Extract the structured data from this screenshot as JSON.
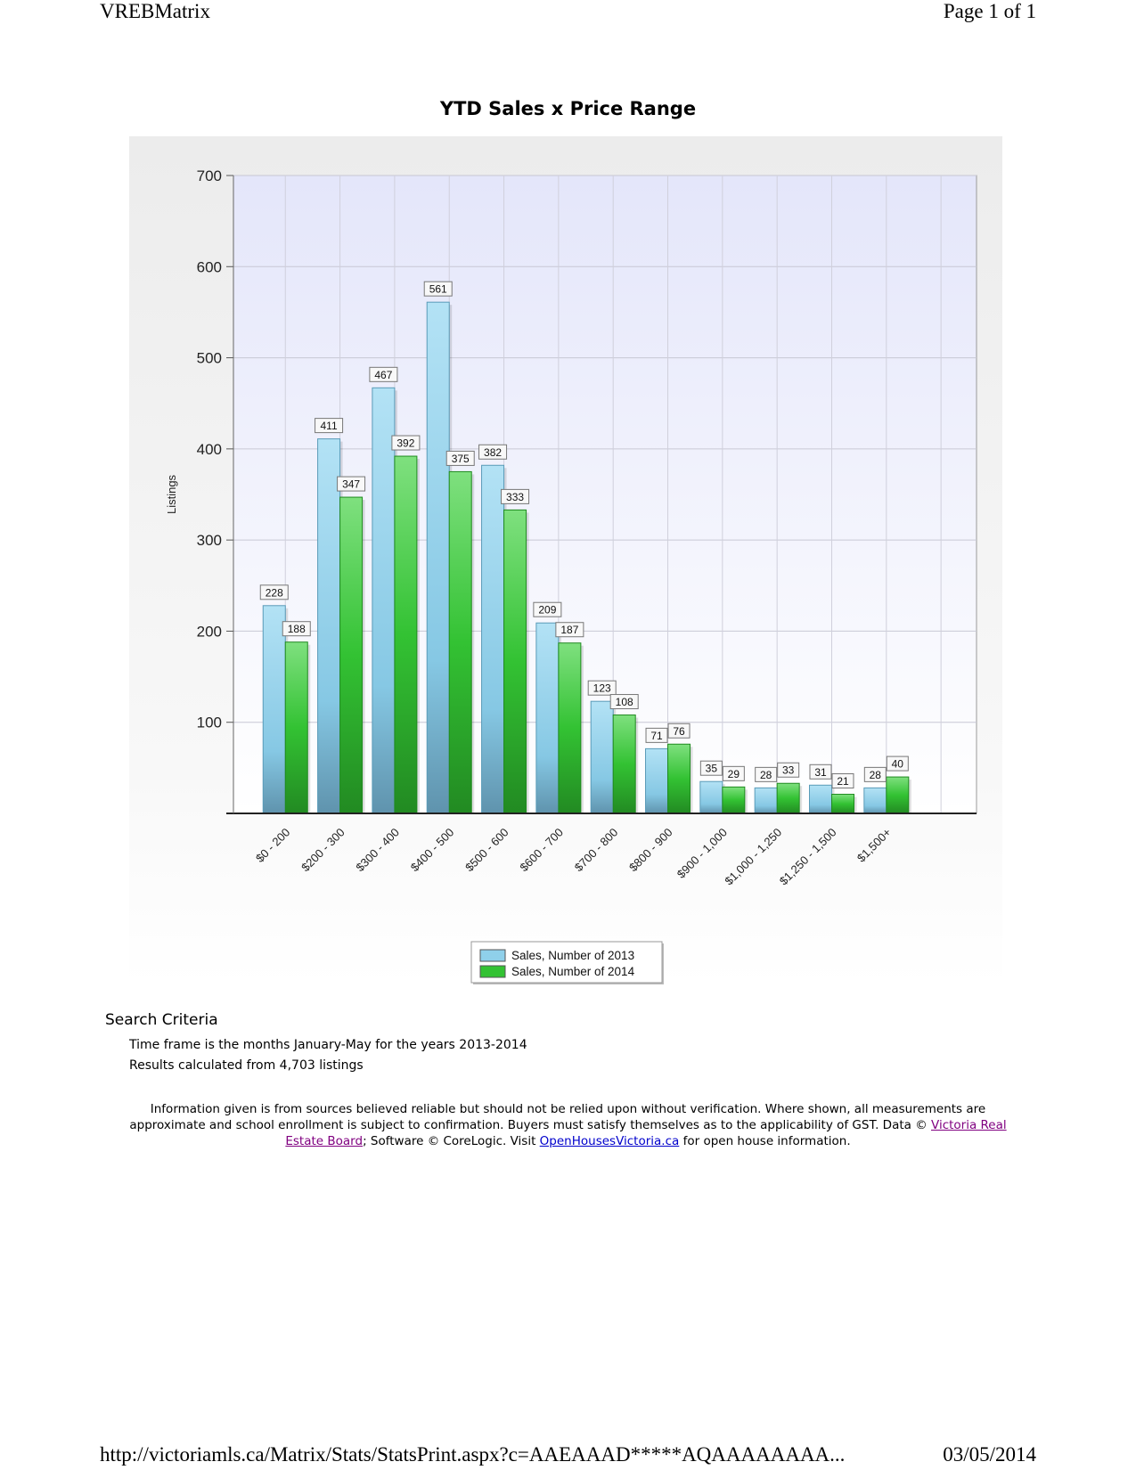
{
  "print_header": {
    "left": "VREBMatrix",
    "right": "Page 1 of 1"
  },
  "print_footer": {
    "url": "http://victoriamls.ca/Matrix/Stats/StatsPrint.aspx?c=AAEAAAD*****AQAAAAAAAA...",
    "date": "03/05/2014"
  },
  "colors": {
    "series_2013": "#8fd0ea",
    "series_2014": "#33c233",
    "plot_bg_top": "#e6e8fa",
    "frame_bg": "#eeeeee"
  },
  "chart_data": {
    "type": "bar",
    "title": "YTD Sales x Price Range",
    "ylabel": "Listings",
    "xlabel": "",
    "ylim": [
      0,
      700
    ],
    "yticks": [
      100,
      200,
      300,
      400,
      500,
      600,
      700
    ],
    "grid": true,
    "legend_position": "bottom-center",
    "categories": [
      "$0 - 200",
      "$200 - 300",
      "$300 - 400",
      "$400 - 500",
      "$500 - 600",
      "$600 - 700",
      "$700 - 800",
      "$800 - 900",
      "$900 - 1,000",
      "$1,000 - 1,250",
      "$1,250 - 1,500",
      "$1,500+"
    ],
    "series": [
      {
        "name": "Sales, Number of 2013",
        "values": [
          228,
          411,
          467,
          561,
          382,
          209,
          123,
          71,
          35,
          28,
          31,
          28
        ]
      },
      {
        "name": "Sales, Number of 2014",
        "values": [
          188,
          347,
          392,
          375,
          333,
          187,
          108,
          76,
          29,
          33,
          21,
          40
        ]
      }
    ]
  },
  "search_criteria": {
    "heading": "Search Criteria",
    "timeframe": "Time frame is the months January-May for the years 2013-2014",
    "results": "Results calculated from 4,703 listings"
  },
  "disclaimer": {
    "text_before": "Information given is from sources believed reliable but should not be relied upon without verification. Where shown, all measurements are approximate and school enrollment is subject to confirmation. Buyers must satisfy themselves as to the applicability of GST. Data © ",
    "board_link": "Victoria Real Estate Board",
    "text_middle": "; Software © CoreLogic. Visit ",
    "openhouse_link": "OpenHousesVictoria.ca",
    "text_after": " for open house information."
  }
}
